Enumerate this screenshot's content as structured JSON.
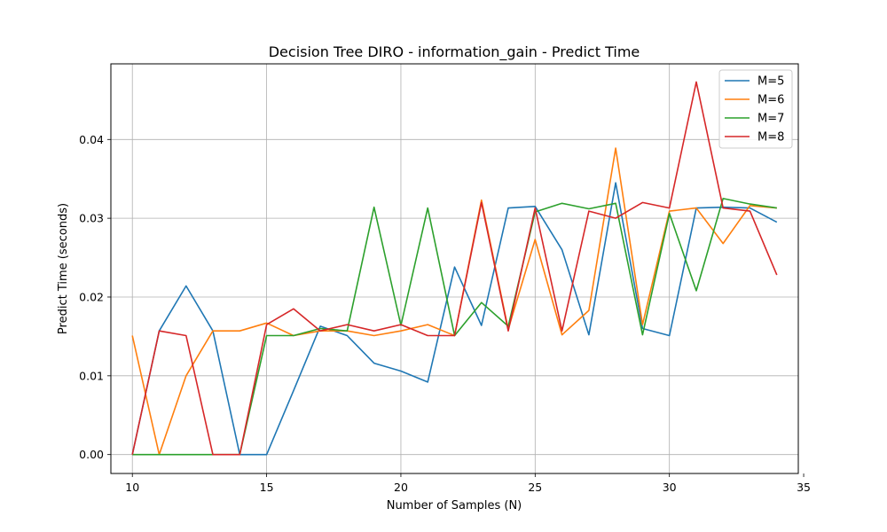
{
  "chart_data": {
    "type": "line",
    "title": "Decision Tree DIRO - information_gain - Predict Time",
    "xlabel": "Number of Samples (N)",
    "ylabel": "Predict Time (seconds)",
    "xlim": [
      9.2,
      34.8
    ],
    "ylim": [
      -0.0024,
      0.0496
    ],
    "xticks": [
      10,
      15,
      20,
      25,
      30,
      35
    ],
    "yticks": [
      0.0,
      0.01,
      0.02,
      0.03,
      0.04
    ],
    "ytick_labels": [
      "0.00",
      "0.01",
      "0.02",
      "0.03",
      "0.04"
    ],
    "grid": true,
    "legend_position": "top-right",
    "x": [
      10,
      11,
      12,
      13,
      14,
      15,
      16,
      17,
      18,
      19,
      20,
      21,
      22,
      23,
      24,
      25,
      26,
      27,
      28,
      29,
      30,
      31,
      32,
      33,
      34
    ],
    "series": [
      {
        "name": "M=5",
        "color": "#1f77b4",
        "values": [
          0.0,
          0.0157,
          0.0214,
          0.0157,
          0.0,
          0.0,
          0.0081,
          0.0163,
          0.0151,
          0.0116,
          0.0106,
          0.0092,
          0.0238,
          0.0164,
          0.0313,
          0.0315,
          0.026,
          0.0152,
          0.0345,
          0.016,
          0.0151,
          0.0313,
          0.0314,
          0.0313,
          0.0295
        ]
      },
      {
        "name": "M=6",
        "color": "#ff7f0e",
        "values": [
          0.0151,
          0.0,
          0.01,
          0.0157,
          0.0157,
          0.0167,
          0.0151,
          0.0157,
          0.0157,
          0.0151,
          0.0157,
          0.0165,
          0.0151,
          0.0323,
          0.0159,
          0.0273,
          0.0152,
          0.0183,
          0.0389,
          0.0165,
          0.0309,
          0.0313,
          0.0268,
          0.0316,
          0.0313
        ]
      },
      {
        "name": "M=7",
        "color": "#2ca02c",
        "values": [
          0.0,
          0.0,
          0.0,
          0.0,
          0.0,
          0.0151,
          0.0151,
          0.016,
          0.0157,
          0.0314,
          0.0164,
          0.0313,
          0.0151,
          0.0193,
          0.0163,
          0.0308,
          0.0319,
          0.0312,
          0.0319,
          0.0152,
          0.0306,
          0.0208,
          0.0325,
          0.0318,
          0.0313
        ]
      },
      {
        "name": "M=8",
        "color": "#d62728",
        "values": [
          0.0,
          0.0157,
          0.0151,
          0.0,
          0.0,
          0.0165,
          0.0185,
          0.0157,
          0.0165,
          0.0157,
          0.0165,
          0.0151,
          0.0151,
          0.032,
          0.0157,
          0.0313,
          0.0157,
          0.0309,
          0.03,
          0.032,
          0.0313,
          0.0473,
          0.0313,
          0.0309,
          0.0228
        ]
      }
    ]
  }
}
